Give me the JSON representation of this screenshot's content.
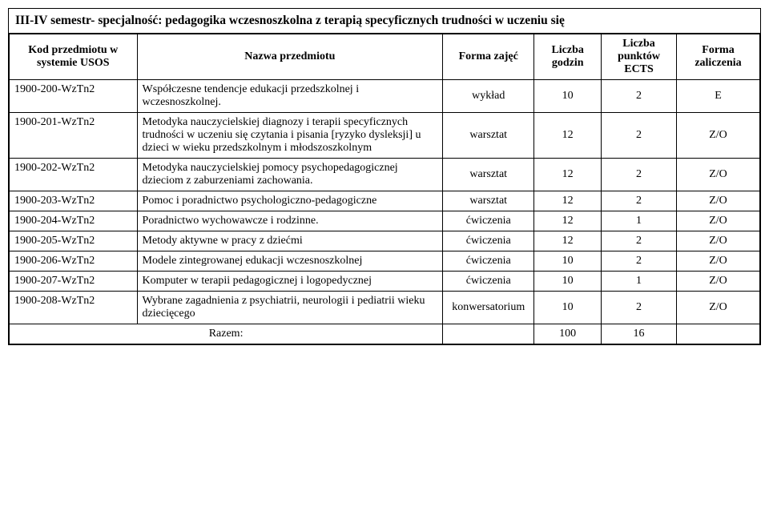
{
  "title": "III-IV  semestr- specjalność: pedagogika wczesnoszkolna z terapią specyficznych trudności w uczeniu się",
  "headers": {
    "code": "Kod przedmiotu w systemie USOS",
    "name": "Nazwa przedmiotu",
    "form": "Forma zajęć",
    "hours": "Liczba godzin",
    "ects": "Liczba punktów ECTS",
    "credit": "Forma zaliczenia"
  },
  "rows": [
    {
      "code": "1900-200-WzTn2",
      "name": "Współczesne tendencje edukacji przedszkolnej i wczesnoszkolnej.",
      "form": "wykład",
      "hours": "10",
      "ects": "2",
      "credit": "E"
    },
    {
      "code": "1900-201-WzTn2",
      "name": "Metodyka nauczycielskiej diagnozy i terapii specyficznych trudności w uczeniu się czytania i pisania [ryzyko dysleksji] u dzieci w wieku przedszkolnym i młodszoszkolnym",
      "form": "warsztat",
      "hours": "12",
      "ects": "2",
      "credit": "Z/O"
    },
    {
      "code": "1900-202-WzTn2",
      "name": "Metodyka nauczycielskiej pomocy psychopedagogicznej dzieciom z zaburzeniami zachowania.",
      "form": "warsztat",
      "hours": "12",
      "ects": "2",
      "credit": "Z/O"
    },
    {
      "code": "1900-203-WzTn2",
      "name": "Pomoc i poradnictwo psychologiczno-pedagogiczne",
      "form": "warsztat",
      "hours": "12",
      "ects": "2",
      "credit": "Z/O"
    },
    {
      "code": "1900-204-WzTn2",
      "name": "Poradnictwo wychowawcze i rodzinne.",
      "form": "ćwiczenia",
      "hours": "12",
      "ects": "1",
      "credit": "Z/O"
    },
    {
      "code": "1900-205-WzTn2",
      "name": "Metody aktywne w pracy z dziećmi",
      "form": "ćwiczenia",
      "hours": "12",
      "ects": "2",
      "credit": "Z/O"
    },
    {
      "code": "1900-206-WzTn2",
      "name": "Modele zintegrowanej edukacji wczesnoszkolnej",
      "form": "ćwiczenia",
      "hours": "10",
      "ects": "2",
      "credit": "Z/O"
    },
    {
      "code": "1900-207-WzTn2",
      "name": "Komputer w terapii pedagogicznej i logopedycznej",
      "form": "ćwiczenia",
      "hours": "10",
      "ects": "1",
      "credit": "Z/O"
    },
    {
      "code": "1900-208-WzTn2",
      "name": "Wybrane zagadnienia z psychiatrii, neurologii i pediatrii wieku dziecięcego",
      "form": "konwersatorium",
      "hours": "10",
      "ects": "2",
      "credit": "Z/O"
    }
  ],
  "total": {
    "label": "Razem:",
    "hours": "100",
    "ects": "16"
  }
}
